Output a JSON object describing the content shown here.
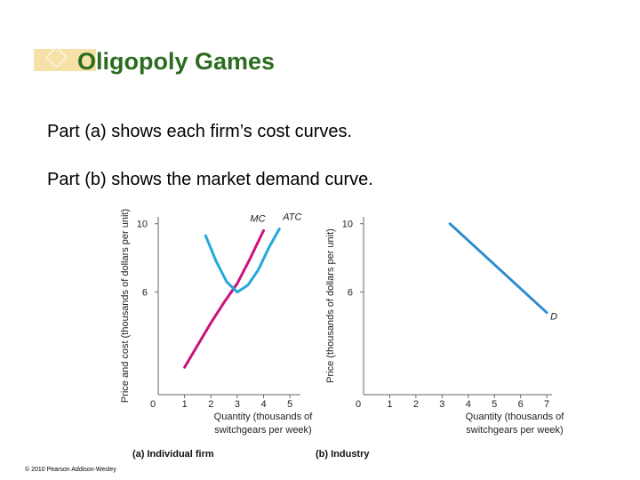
{
  "slide": {
    "title": "Oligopoly Games",
    "bullets": [
      "Part (a) shows each firm’s cost curves.",
      "Part (b) shows the market demand curve."
    ],
    "copyright": "© 2010 Pearson Addison-Wesley"
  },
  "colors": {
    "title": "#2c6c1f",
    "accent": "#f6e2a8",
    "curve": "#cc1179",
    "atc_curve": "#23a7df",
    "demand_curve": "#2f8ccc"
  },
  "chart_data": [
    {
      "type": "line",
      "title": "(a) Individual firm",
      "xlabel": "Quantity (thousands of switchgears per week)",
      "ylabel": "Price and cost (thousands of dollars per unit)",
      "xlim": [
        0,
        5.4
      ],
      "ylim": [
        0,
        10.4
      ],
      "x_ticks": [
        "0",
        "1",
        "2",
        "3",
        "4",
        "5"
      ],
      "y_ticks": [
        "6",
        "10"
      ],
      "origin_label": "0",
      "series": [
        {
          "name": "MC",
          "points": [
            [
              1.0,
              1.6
            ],
            [
              1.5,
              2.9
            ],
            [
              2.0,
              4.2
            ],
            [
              2.5,
              5.4
            ],
            [
              3.0,
              6.5
            ],
            [
              3.5,
              8.0
            ],
            [
              4.0,
              9.6
            ]
          ]
        },
        {
          "name": "ATC",
          "points": [
            [
              1.8,
              9.3
            ],
            [
              2.2,
              7.8
            ],
            [
              2.6,
              6.6
            ],
            [
              3.0,
              6.0
            ],
            [
              3.4,
              6.4
            ],
            [
              3.8,
              7.3
            ],
            [
              4.2,
              8.6
            ],
            [
              4.6,
              9.7
            ]
          ]
        }
      ]
    },
    {
      "type": "line",
      "title": "(b) Industry",
      "xlabel": "Quantity (thousands of switchgears per week)",
      "ylabel": "Price (thousands of dollars per unit)",
      "xlim": [
        0,
        7.2
      ],
      "ylim": [
        0,
        10.4
      ],
      "x_ticks": [
        "0",
        "1",
        "2",
        "3",
        "4",
        "5",
        "6",
        "7"
      ],
      "y_ticks": [
        "6",
        "10"
      ],
      "origin_label": "0",
      "series": [
        {
          "name": "D",
          "points": [
            [
              3.3,
              10.0
            ],
            [
              7.0,
              4.8
            ]
          ]
        }
      ]
    }
  ]
}
